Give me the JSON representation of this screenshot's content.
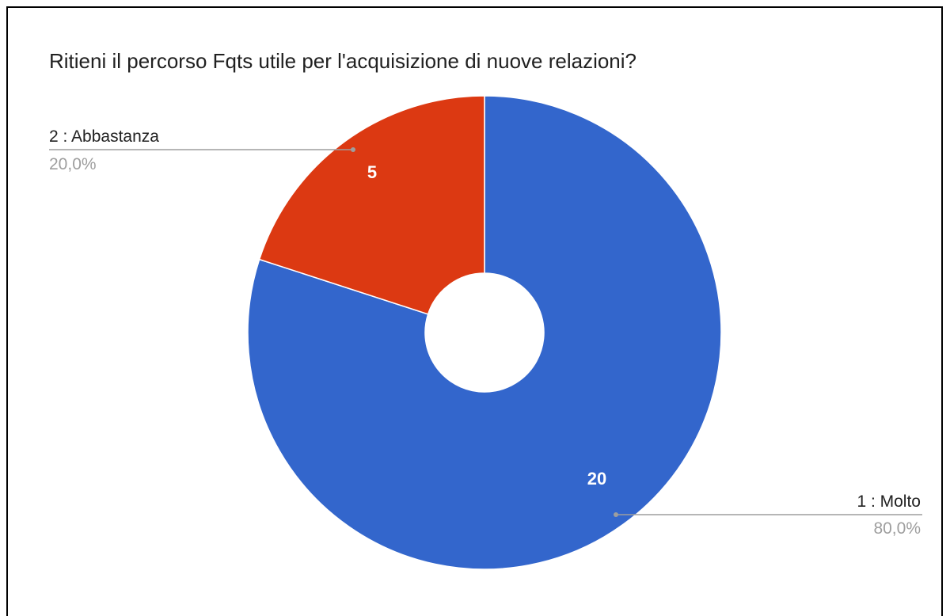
{
  "chart_data": {
    "type": "pie",
    "donut": true,
    "title": "Ritieni il percorso Fqts utile per l'acquisizione di nuove relazioni?",
    "slices": [
      {
        "label": "1 : Molto",
        "value": 20,
        "percent": "80,0%",
        "color": "#3366cc"
      },
      {
        "label": "2 : Abbastanza",
        "value": 5,
        "percent": "20,0%",
        "color": "#dc3912"
      }
    ],
    "legend": "labeled-leader-lines"
  }
}
